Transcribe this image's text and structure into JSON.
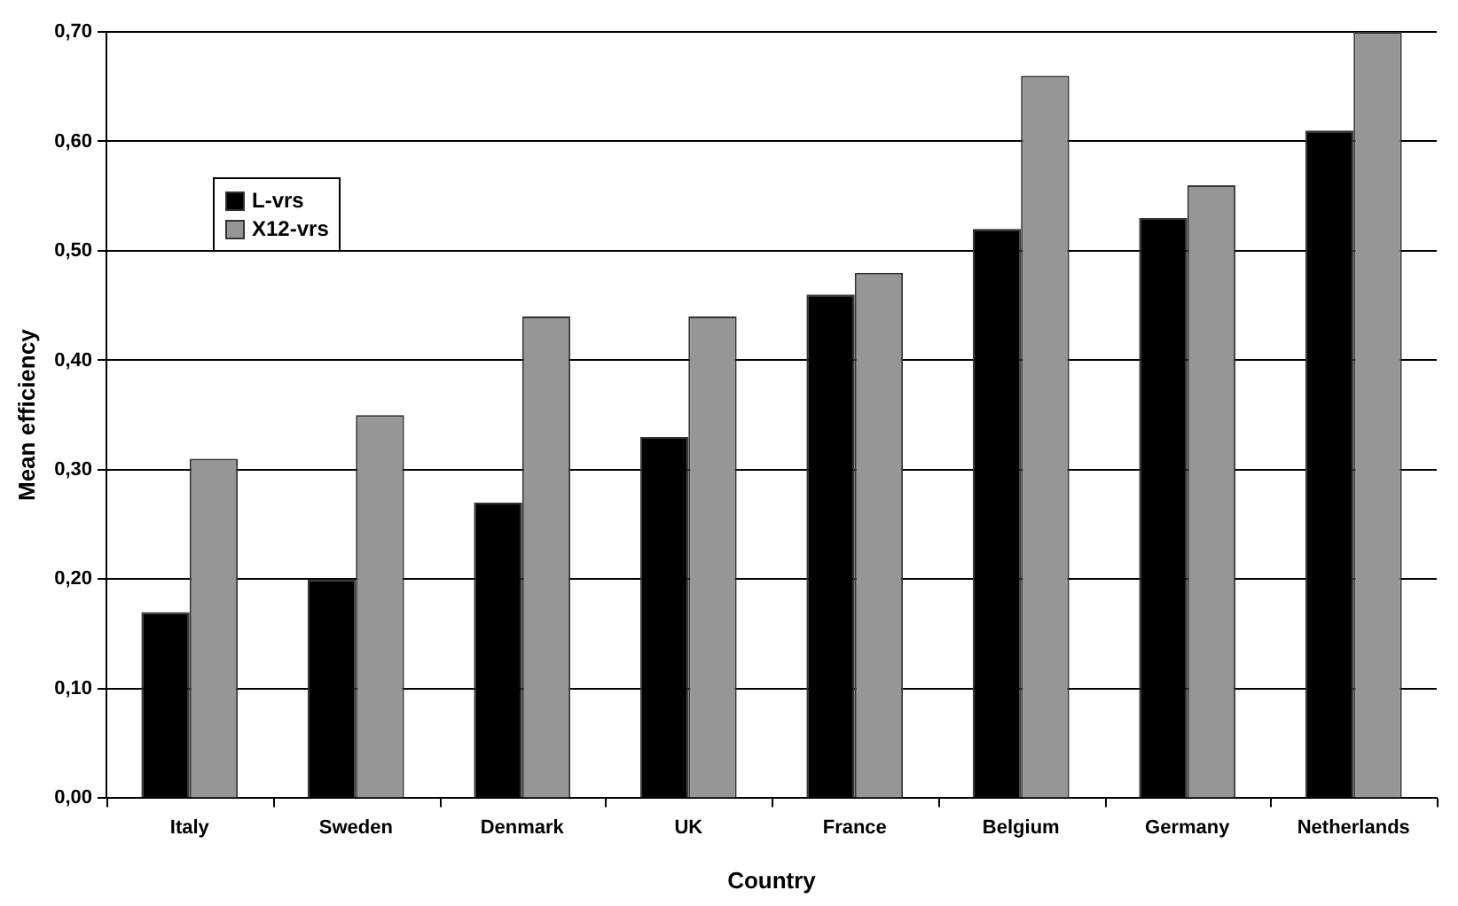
{
  "chart_data": {
    "type": "bar",
    "xlabel": "Country",
    "ylabel": "Mean efficiency",
    "categories": [
      "Italy",
      "Sweden",
      "Denmark",
      "UK",
      "France",
      "Belgium",
      "Germany",
      "Netherlands"
    ],
    "series": [
      {
        "name": "L-vrs",
        "color": "#000000",
        "values": [
          0.17,
          0.2,
          0.27,
          0.33,
          0.46,
          0.52,
          0.53,
          0.61
        ]
      },
      {
        "name": "X12-vrs",
        "color": "#969696",
        "values": [
          0.31,
          0.35,
          0.44,
          0.44,
          0.48,
          0.66,
          0.56,
          0.7
        ]
      }
    ],
    "ylim": [
      0,
      0.7
    ],
    "yticks": [
      {
        "value": 0,
        "label": "0,00"
      },
      {
        "value": 0.1,
        "label": "0,10"
      },
      {
        "value": 0.2,
        "label": "0,20"
      },
      {
        "value": 0.3,
        "label": "0,30"
      },
      {
        "value": 0.4,
        "label": "0,40"
      },
      {
        "value": 0.5,
        "label": "0,50"
      },
      {
        "value": 0.6,
        "label": "0,60"
      },
      {
        "value": 0.7,
        "label": "0,70"
      }
    ],
    "grid": "y",
    "legend": "top left"
  }
}
